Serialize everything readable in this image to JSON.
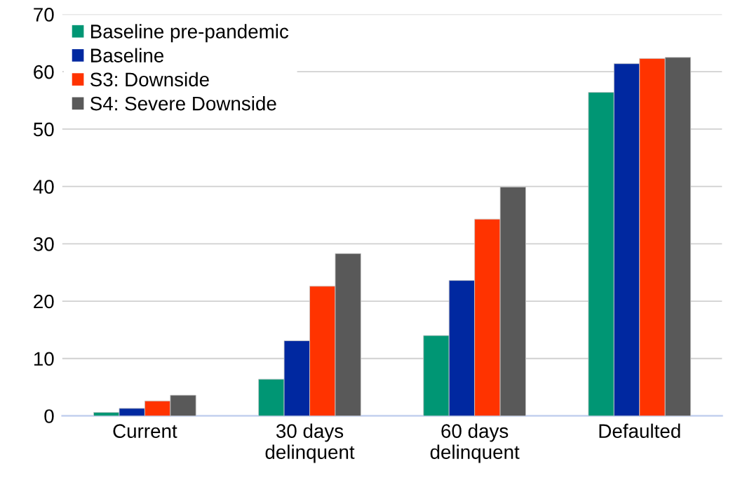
{
  "chart_data": {
    "type": "bar",
    "categories": [
      "Current",
      "30 days\ndelinquent",
      "60 days\ndelinquent",
      "Defaulted"
    ],
    "series": [
      {
        "name": "Baseline pre-pandemic",
        "color": "#009674",
        "values": [
          0.6,
          6.4,
          14.0,
          56.4
        ]
      },
      {
        "name": "Baseline",
        "color": "#0028a0",
        "values": [
          1.3,
          13.1,
          23.6,
          61.4
        ]
      },
      {
        "name": "S3: Downside",
        "color": "#ff3300",
        "values": [
          2.6,
          22.6,
          34.3,
          62.3
        ]
      },
      {
        "name": "S4: Severe Downside",
        "color": "#595959",
        "values": [
          3.6,
          28.3,
          39.9,
          62.5
        ]
      }
    ],
    "ylim": [
      0,
      70
    ],
    "yticks": [
      0,
      10,
      20,
      30,
      40,
      50,
      60,
      70
    ],
    "grid": "y",
    "legend": "top left"
  }
}
